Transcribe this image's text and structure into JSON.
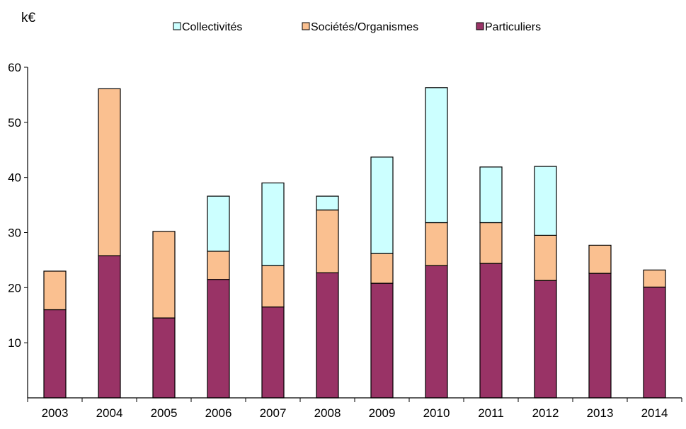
{
  "chart_data": {
    "type": "bar",
    "stacked": true,
    "unit_label": "k€",
    "categories": [
      "2003",
      "2004",
      "2005",
      "2006",
      "2007",
      "2008",
      "2009",
      "2010",
      "2011",
      "2012",
      "2013",
      "2014"
    ],
    "series": [
      {
        "name": "Particuliers",
        "color": "#993366",
        "values": [
          16.0,
          25.8,
          14.5,
          21.5,
          16.5,
          22.7,
          20.8,
          24.0,
          24.4,
          21.3,
          22.6,
          20.1
        ]
      },
      {
        "name": "Sociétés/Organismes",
        "color": "#fac090",
        "values": [
          7.0,
          30.3,
          15.7,
          5.1,
          7.5,
          11.4,
          5.4,
          7.8,
          7.4,
          8.2,
          5.1,
          3.1
        ]
      },
      {
        "name": "Collectivités",
        "color": "#ccffff",
        "values": [
          0,
          0,
          0,
          10.0,
          15.0,
          2.5,
          17.5,
          24.5,
          10.1,
          12.5,
          0,
          0
        ]
      }
    ],
    "legend_order": [
      "Collectivités",
      "Sociétés/Organismes",
      "Particuliers"
    ],
    "legend_position": "top",
    "ylim": [
      0,
      60
    ],
    "yticks": [
      "10",
      "20",
      "30",
      "40",
      "50",
      "60"
    ],
    "grid": false
  }
}
